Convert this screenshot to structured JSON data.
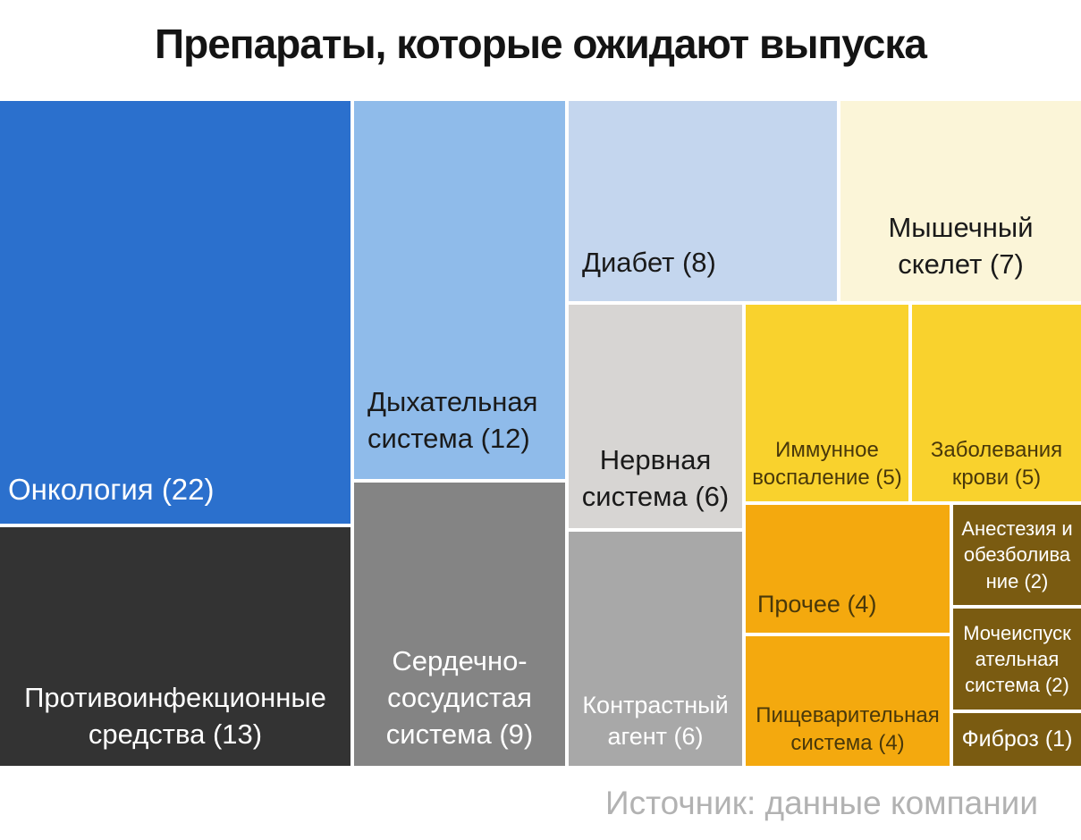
{
  "title": "Препараты, которые ожидают выпуска",
  "source": "Источник: данные компании",
  "chart_data": {
    "type": "treemap",
    "title": "Препараты, которые ожидают выпуска",
    "legend": "none",
    "total_items": 15,
    "items": [
      {
        "name": "Онкология",
        "value": 22,
        "label": "Онкология (22)",
        "color": "#2b70cd",
        "text_color": "#ffffff"
      },
      {
        "name": "Противоинфекционные средства",
        "value": 13,
        "label": "Противоинфекционные\nсредства (13)",
        "color": "#333333",
        "text_color": "#ffffff"
      },
      {
        "name": "Дыхательная система",
        "value": 12,
        "label": "Дыхательная\nсистема (12)",
        "color": "#8fbbea",
        "text_color": "#1a1a1a"
      },
      {
        "name": "Сердечно-сосудистая система",
        "value": 9,
        "label": "Сердечно-\nсосудистая\nсистема (9)",
        "color": "#848484",
        "text_color": "#ffffff"
      },
      {
        "name": "Диабет",
        "value": 8,
        "label": "Диабет (8)",
        "color": "#c4d6ee",
        "text_color": "#1a1a1a"
      },
      {
        "name": "Мышечный скелет",
        "value": 7,
        "label": "Мышечный\nскелет (7)",
        "color": "#fbf5d8",
        "text_color": "#1a1a1a"
      },
      {
        "name": "Нервная система",
        "value": 6,
        "label": "Нервная\nсистема (6)",
        "color": "#d7d5d3",
        "text_color": "#1a1a1a"
      },
      {
        "name": "Контрастный агент",
        "value": 6,
        "label": "Контрастный\nагент (6)",
        "color": "#a8a8a8",
        "text_color": "#ffffff"
      },
      {
        "name": "Иммунное воспаление",
        "value": 5,
        "label": "Иммунное\nвоспаление (5)",
        "color": "#f9d22d",
        "text_color": "#49380a"
      },
      {
        "name": "Заболевания крови",
        "value": 5,
        "label": "Заболевания\nкрови (5)",
        "color": "#f9d22d",
        "text_color": "#49380a"
      },
      {
        "name": "Прочее",
        "value": 4,
        "label": "Прочее (4)",
        "color": "#f4a90e",
        "text_color": "#49380a"
      },
      {
        "name": "Пищеварительная система",
        "value": 4,
        "label": "Пищеварительная\nсистема (4)",
        "color": "#f4a90e",
        "text_color": "#49380a"
      },
      {
        "name": "Анестезия и обезболивание",
        "value": 2,
        "label": "Анестезия и\nобезболива\nние (2)",
        "color": "#7a5b11",
        "text_color": "#ffffff"
      },
      {
        "name": "Мочеиспускательная система",
        "value": 2,
        "label": "Мочеиспуск\nательная\nсистема (2)",
        "color": "#7a5b11",
        "text_color": "#ffffff"
      },
      {
        "name": "Фиброз",
        "value": 1,
        "label": "Фиброз (1)",
        "color": "#7a5b11",
        "text_color": "#ffffff"
      }
    ]
  }
}
